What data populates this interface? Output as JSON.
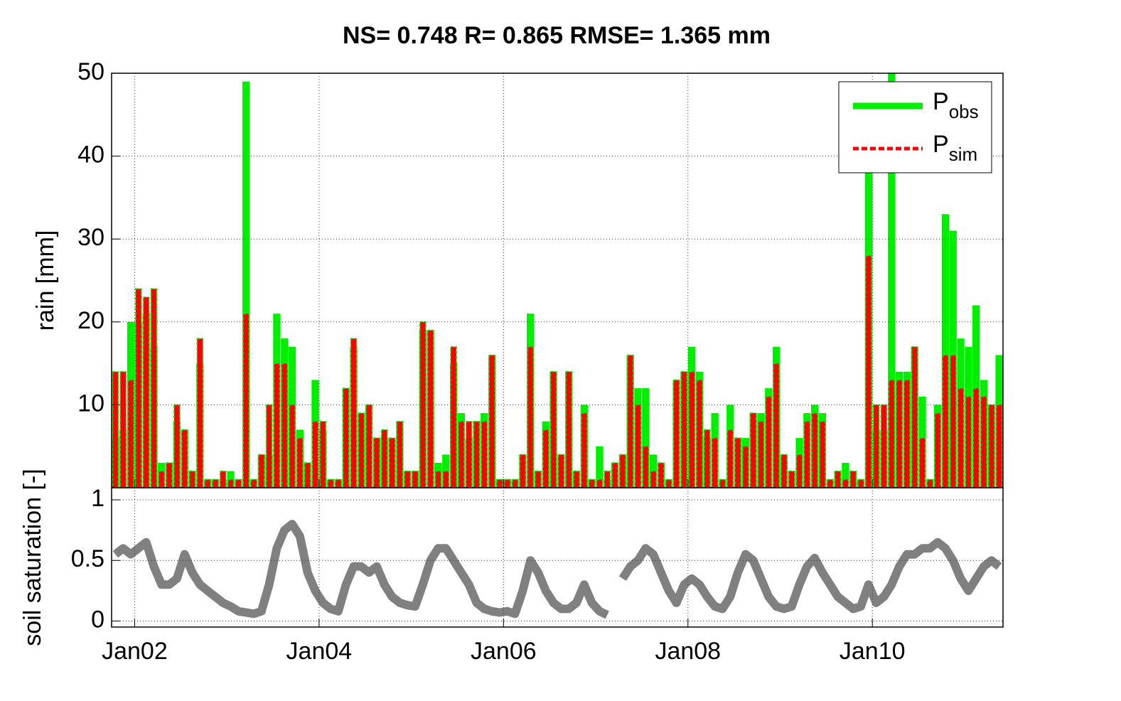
{
  "chart_data": [
    {
      "type": "bar",
      "title": "NS= 0.748 R= 0.865 RMSE= 1.365 mm",
      "y_label": "rain [mm]",
      "x": [
        "2001-10",
        "2001-11",
        "2001-12",
        "2002-01",
        "2002-02",
        "2002-03",
        "2002-04",
        "2002-05",
        "2002-06",
        "2002-07",
        "2002-08",
        "2002-09",
        "2002-10",
        "2002-11",
        "2002-12",
        "2003-01",
        "2003-02",
        "2003-03",
        "2003-04",
        "2003-05",
        "2003-06",
        "2003-07",
        "2003-08",
        "2003-09",
        "2003-10",
        "2003-11",
        "2003-12",
        "2004-01",
        "2004-02",
        "2004-03",
        "2004-04",
        "2004-05",
        "2004-06",
        "2004-07",
        "2004-08",
        "2004-09",
        "2004-10",
        "2004-11",
        "2004-12",
        "2005-01",
        "2005-02",
        "2005-03",
        "2005-04",
        "2005-05",
        "2005-06",
        "2005-07",
        "2005-08",
        "2005-09",
        "2005-10",
        "2005-11",
        "2005-12",
        "2006-01",
        "2006-02",
        "2006-03",
        "2006-04",
        "2006-05",
        "2006-06",
        "2006-07",
        "2006-08",
        "2006-09",
        "2006-10",
        "2006-11",
        "2006-12",
        "2007-01",
        "2007-02",
        "2007-03",
        "2007-04",
        "2007-05",
        "2007-06",
        "2007-07",
        "2007-08",
        "2007-09",
        "2007-10",
        "2007-11",
        "2007-12",
        "2008-01",
        "2008-02",
        "2008-03",
        "2008-04",
        "2008-05",
        "2008-06",
        "2008-07",
        "2008-08",
        "2008-09",
        "2008-10",
        "2008-11",
        "2008-12",
        "2009-01",
        "2009-02",
        "2009-03",
        "2009-04",
        "2009-05",
        "2009-06",
        "2009-07",
        "2009-08",
        "2009-09",
        "2009-10",
        "2009-11",
        "2009-12",
        "2010-01",
        "2010-02",
        "2010-03",
        "2010-04",
        "2010-05",
        "2010-06",
        "2010-07",
        "2010-08",
        "2010-09",
        "2010-10",
        "2010-11",
        "2010-12",
        "2011-01",
        "2011-02",
        "2011-03",
        "2011-04",
        "2011-05"
      ],
      "series": [
        {
          "name": "P",
          "name_sub": "obs",
          "color": "#00ee00",
          "values": [
            6,
            7,
            20,
            20,
            21,
            17,
            3,
            3,
            8,
            7,
            2,
            15,
            1,
            1,
            1,
            2,
            1,
            49,
            1,
            4,
            4,
            21,
            18,
            17,
            7,
            3,
            13,
            7,
            1,
            1,
            12,
            17,
            9,
            10,
            6,
            6,
            6,
            8,
            2,
            2,
            19,
            19,
            3,
            4,
            15,
            9,
            6,
            8,
            9,
            16,
            1,
            1,
            1,
            4,
            21,
            2,
            8,
            14,
            4,
            14,
            2,
            10,
            1,
            5,
            1,
            3,
            4,
            16,
            12,
            12,
            4,
            3,
            1,
            13,
            14,
            17,
            14,
            6,
            9,
            1,
            10,
            6,
            6,
            9,
            9,
            12,
            17,
            4,
            2,
            6,
            9,
            10,
            9,
            1,
            2,
            3,
            2,
            1,
            38,
            7,
            7,
            50,
            14,
            14,
            17,
            11,
            1,
            10,
            33,
            31,
            18,
            17,
            22,
            13,
            10,
            16
          ]
        },
        {
          "name": "P",
          "name_sub": "sim",
          "color": "#ff0000",
          "values": [
            14,
            14,
            13,
            24,
            23,
            24,
            2,
            3,
            10,
            7,
            2,
            18,
            1,
            1,
            2,
            1,
            1,
            21,
            1,
            4,
            10,
            15,
            15,
            10,
            6,
            3,
            8,
            8,
            1,
            1,
            12,
            18,
            9,
            10,
            6,
            7,
            6,
            8,
            2,
            2,
            20,
            19,
            2,
            2,
            17,
            8,
            8,
            8,
            8,
            16,
            1,
            1,
            1,
            4,
            17,
            2,
            7,
            14,
            4,
            14,
            2,
            9,
            1,
            1,
            2,
            3,
            4,
            16,
            10,
            5,
            2,
            3,
            1,
            13,
            14,
            14,
            13,
            7,
            6,
            1,
            7,
            6,
            5,
            9,
            8,
            11,
            15,
            4,
            2,
            4,
            8,
            9,
            8,
            1,
            2,
            1,
            2,
            1,
            28,
            10,
            10,
            13,
            13,
            13,
            17,
            6,
            1,
            9,
            16,
            16,
            12,
            11,
            12,
            11,
            10,
            10
          ]
        }
      ],
      "xlim": [
        "2001-10",
        "2011-06"
      ],
      "xticks": [
        "2002-01",
        "2004-01",
        "2006-01",
        "2008-01",
        "2010-01"
      ],
      "ylim": [
        0,
        50
      ],
      "yticks": [
        10,
        20,
        30,
        40,
        50
      ],
      "grid": true,
      "legend": "upper right"
    },
    {
      "type": "line",
      "y_label": "soil saturation [-]",
      "x": [
        "2001-10",
        "2001-11",
        "2001-12",
        "2002-01",
        "2002-02",
        "2002-03",
        "2002-04",
        "2002-05",
        "2002-06",
        "2002-07",
        "2002-08",
        "2002-09",
        "2002-10",
        "2002-11",
        "2002-12",
        "2003-01",
        "2003-02",
        "2003-03",
        "2003-04",
        "2003-05",
        "2003-06",
        "2003-07",
        "2003-08",
        "2003-09",
        "2003-10",
        "2003-11",
        "2003-12",
        "2004-01",
        "2004-02",
        "2004-03",
        "2004-04",
        "2004-05",
        "2004-06",
        "2004-07",
        "2004-08",
        "2004-09",
        "2004-10",
        "2004-11",
        "2004-12",
        "2005-01",
        "2005-02",
        "2005-03",
        "2005-04",
        "2005-05",
        "2005-06",
        "2005-07",
        "2005-08",
        "2005-09",
        "2005-10",
        "2005-11",
        "2005-12",
        "2006-01",
        "2006-02",
        "2006-03",
        "2006-04",
        "2006-05",
        "2006-06",
        "2006-07",
        "2006-08",
        "2006-09",
        "2006-10",
        "2006-11",
        "2006-12",
        "2007-01",
        "2007-02",
        "2007-03",
        "2007-04",
        "2007-05",
        "2007-06",
        "2007-07",
        "2007-08",
        "2007-09",
        "2007-10",
        "2007-11",
        "2007-12",
        "2008-01",
        "2008-02",
        "2008-03",
        "2008-04",
        "2008-05",
        "2008-06",
        "2008-07",
        "2008-08",
        "2008-09",
        "2008-10",
        "2008-11",
        "2008-12",
        "2009-01",
        "2009-02",
        "2009-03",
        "2009-04",
        "2009-05",
        "2009-06",
        "2009-07",
        "2009-08",
        "2009-09",
        "2009-10",
        "2009-11",
        "2009-12",
        "2010-01",
        "2010-02",
        "2010-03",
        "2010-04",
        "2010-05",
        "2010-06",
        "2010-07",
        "2010-08",
        "2010-09",
        "2010-10",
        "2010-11",
        "2010-12",
        "2011-01",
        "2011-02",
        "2011-03",
        "2011-04",
        "2011-05"
      ],
      "series": [
        {
          "color": "#808080",
          "values": [
            0.55,
            0.6,
            0.55,
            0.6,
            0.65,
            0.45,
            0.3,
            0.3,
            0.35,
            0.55,
            0.4,
            0.3,
            0.25,
            0.2,
            0.15,
            0.12,
            0.08,
            0.07,
            0.06,
            0.08,
            0.3,
            0.6,
            0.75,
            0.8,
            0.7,
            0.4,
            0.25,
            0.15,
            0.1,
            0.08,
            0.3,
            0.45,
            0.45,
            0.4,
            0.45,
            0.3,
            0.2,
            0.15,
            0.13,
            0.12,
            0.3,
            0.5,
            0.6,
            0.6,
            0.5,
            0.4,
            0.3,
            0.15,
            0.1,
            0.08,
            0.07,
            0.08,
            0.06,
            0.25,
            0.5,
            0.4,
            0.25,
            0.15,
            0.1,
            0.1,
            0.15,
            0.3,
            0.15,
            0.08,
            0.05,
            null,
            0.35,
            0.45,
            0.5,
            0.6,
            0.55,
            0.4,
            0.25,
            0.15,
            0.3,
            0.35,
            0.3,
            0.2,
            0.12,
            0.1,
            0.2,
            0.4,
            0.55,
            0.5,
            0.35,
            0.2,
            0.12,
            0.1,
            0.12,
            0.3,
            0.45,
            0.52,
            0.4,
            0.3,
            0.2,
            0.15,
            0.1,
            0.12,
            0.3,
            0.15,
            0.2,
            0.3,
            0.45,
            0.55,
            0.55,
            0.6,
            0.6,
            0.65,
            0.6,
            0.5,
            0.35,
            0.25,
            0.35,
            0.45,
            0.5,
            0.45
          ]
        }
      ],
      "xlim": [
        "2001-10",
        "2011-06"
      ],
      "xticks": [
        {
          "value": "2002-01",
          "label": "Jan02"
        },
        {
          "value": "2004-01",
          "label": "Jan04"
        },
        {
          "value": "2006-01",
          "label": "Jan06"
        },
        {
          "value": "2008-01",
          "label": "Jan08"
        },
        {
          "value": "2010-01",
          "label": "Jan10"
        }
      ],
      "ylim": [
        -0.05,
        1.1
      ],
      "yticks": [
        0,
        0.5,
        1
      ],
      "grid": true
    }
  ]
}
